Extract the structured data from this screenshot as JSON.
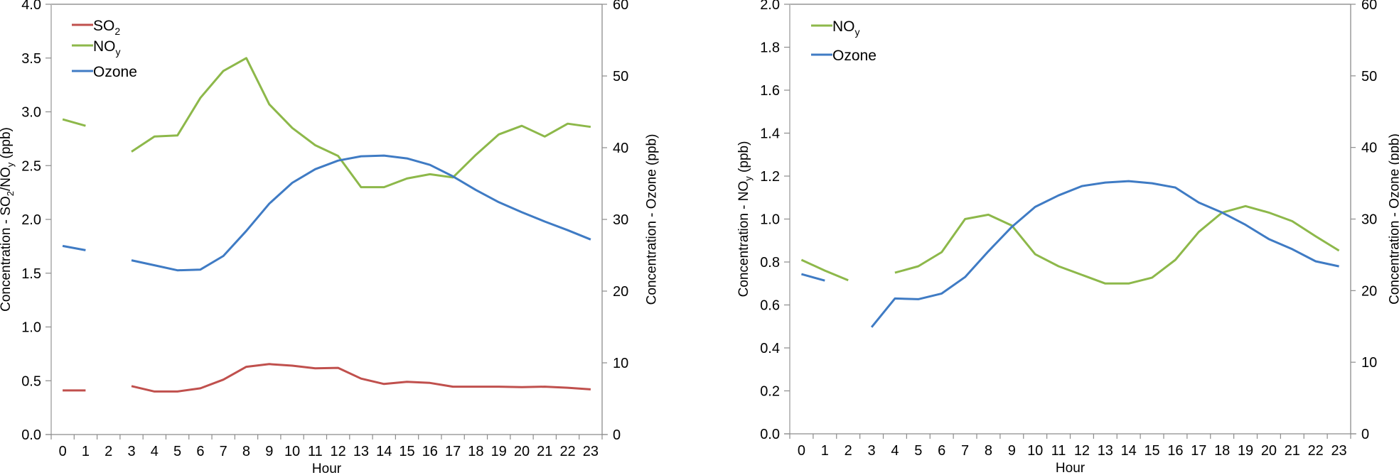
{
  "chart_data": [
    {
      "type": "line",
      "title": "",
      "xlabel": "Hour",
      "ylabel": "Concentration - SO₂/NOᵧ (ppb)",
      "ylabel_parts": {
        "pre": "Concentration - SO",
        "sub1": "2",
        "mid": "/NO",
        "sub2": "y",
        "post": " (ppb)"
      },
      "y2label": "Concentration - Ozone (ppb)",
      "x": [
        0,
        1,
        2,
        3,
        4,
        5,
        6,
        7,
        8,
        9,
        10,
        11,
        12,
        13,
        14,
        15,
        16,
        17,
        18,
        19,
        20,
        21,
        22,
        23
      ],
      "ylim": [
        0,
        4.0
      ],
      "y_ticks": [
        "0.0",
        "0.5",
        "1.0",
        "1.5",
        "2.0",
        "2.5",
        "3.0",
        "3.5",
        "4.0"
      ],
      "y2lim": [
        0,
        60
      ],
      "y2_ticks": [
        "0",
        "10",
        "20",
        "30",
        "40",
        "50",
        "60"
      ],
      "grid": false,
      "legend_position": "top-left",
      "series": [
        {
          "name": "SO2",
          "label_main": "SO",
          "label_sub": "2",
          "axis": "left",
          "color": "#c0504d",
          "values": [
            0.41,
            0.41,
            null,
            0.45,
            0.4,
            0.4,
            0.43,
            0.51,
            0.63,
            0.655,
            0.64,
            0.615,
            0.62,
            0.52,
            0.47,
            0.49,
            0.48,
            0.445,
            0.445,
            0.445,
            0.44,
            0.445,
            0.435,
            0.42
          ]
        },
        {
          "name": "NOy",
          "label_main": "NO",
          "label_sub": "y",
          "axis": "left",
          "color": "#8db84a",
          "values": [
            2.93,
            2.87,
            null,
            2.63,
            2.77,
            2.78,
            3.13,
            3.38,
            3.5,
            3.07,
            2.85,
            2.69,
            2.59,
            2.3,
            2.3,
            2.38,
            2.42,
            2.39,
            2.6,
            2.79,
            2.87,
            2.77,
            2.89,
            2.86
          ]
        },
        {
          "name": "Ozone",
          "label_main": "Ozone",
          "label_sub": "",
          "axis": "right",
          "color": "#3f7bc4",
          "values": [
            26.3,
            25.7,
            null,
            24.3,
            23.6,
            22.9,
            23.0,
            24.9,
            28.4,
            32.2,
            35.1,
            37.0,
            38.2,
            38.8,
            38.9,
            38.5,
            37.6,
            36.0,
            34.1,
            32.4,
            31.0,
            29.7,
            28.5,
            27.2
          ]
        }
      ]
    },
    {
      "type": "line",
      "title": "",
      "xlabel": "Hour",
      "ylabel": "Concentration - NOᵧ (ppb)",
      "ylabel_parts": {
        "pre": "Concentration - NO",
        "sub1": "y",
        "mid": "",
        "sub2": "",
        "post": " (ppb)"
      },
      "y2label": "Concentration - Ozone (ppb)",
      "x": [
        0,
        1,
        2,
        3,
        4,
        5,
        6,
        7,
        8,
        9,
        10,
        11,
        12,
        13,
        14,
        15,
        16,
        17,
        18,
        19,
        20,
        21,
        22,
        23
      ],
      "ylim": [
        0,
        2.0
      ],
      "y_ticks": [
        "0.0",
        "0.2",
        "0.4",
        "0.6",
        "0.8",
        "1.0",
        "1.2",
        "1.4",
        "1.6",
        "1.8",
        "2.0"
      ],
      "y2lim": [
        0,
        60
      ],
      "y2_ticks": [
        "0",
        "10",
        "20",
        "30",
        "40",
        "50",
        "60"
      ],
      "grid": false,
      "legend_position": "top-left",
      "series": [
        {
          "name": "NOy",
          "label_main": "NO",
          "label_sub": "y",
          "axis": "left",
          "color": "#8db84a",
          "values": [
            0.81,
            0.76,
            0.715,
            null,
            0.75,
            0.78,
            0.846,
            1.0,
            1.02,
            0.97,
            0.836,
            0.78,
            0.74,
            0.7,
            0.7,
            0.727,
            0.81,
            0.94,
            1.03,
            1.06,
            1.03,
            0.99,
            0.92,
            0.853
          ]
        },
        {
          "name": "Ozone",
          "label_main": "Ozone",
          "label_sub": "",
          "axis": "right",
          "color": "#3f7bc4",
          "values": [
            22.3,
            21.4,
            null,
            14.9,
            18.9,
            18.8,
            19.6,
            21.9,
            25.5,
            28.9,
            31.7,
            33.3,
            34.6,
            35.1,
            35.3,
            35.0,
            34.4,
            32.3,
            30.9,
            29.2,
            27.2,
            25.8,
            24.1,
            23.4
          ]
        }
      ]
    }
  ]
}
